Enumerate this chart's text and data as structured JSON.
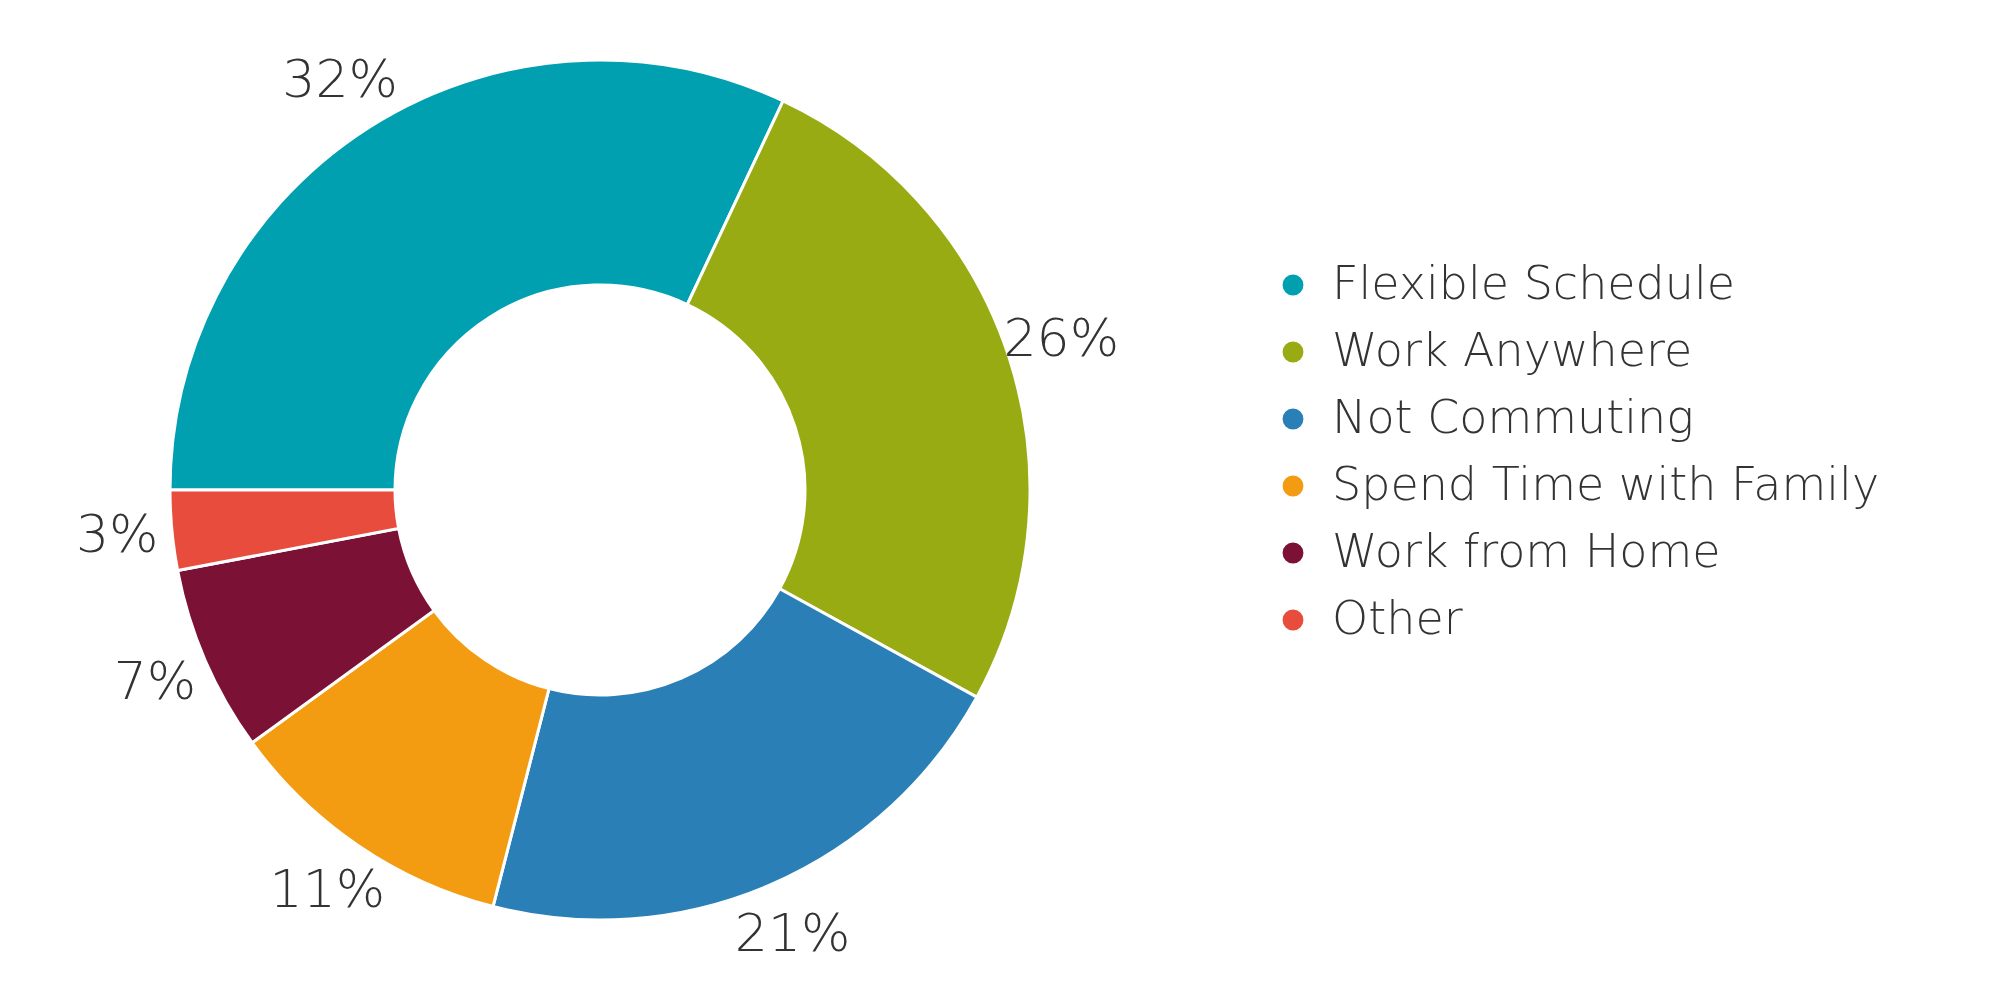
{
  "chart_data": {
    "type": "donut",
    "categories": [
      "Flexible Schedule",
      "Work Anywhere",
      "Not Commuting",
      "Spend Time with Family",
      "Work from Home",
      "Other"
    ],
    "values": [
      32,
      26,
      21,
      11,
      7,
      3
    ],
    "colors": [
      "#00a0b0",
      "#99ab13",
      "#2a7fb6",
      "#f39c12",
      "#7b1135",
      "#e84c3d"
    ],
    "value_labels": [
      "32%",
      "26%",
      "21%",
      "11%",
      "7%",
      "3%"
    ],
    "legend": "right"
  }
}
